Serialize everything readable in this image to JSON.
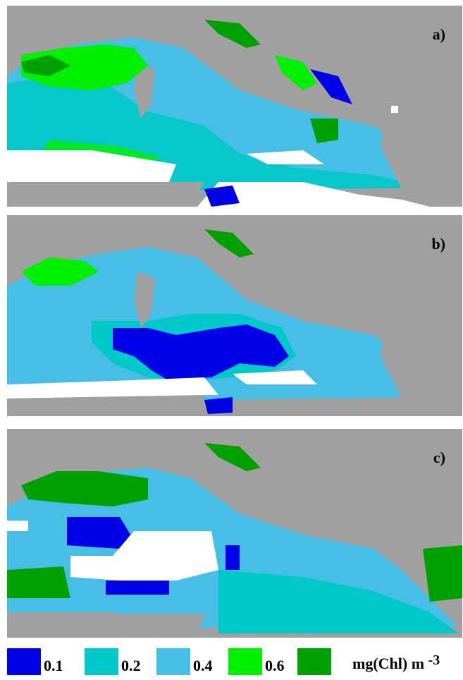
{
  "colors": {
    "land": "#a0a0a0",
    "nodata": "#ffffff",
    "c01": "#0000e6",
    "c02": "#00c8c8",
    "c04": "#46bee6",
    "c06": "#00f000",
    "c08": "#00a000"
  },
  "panels": [
    {
      "id": "a",
      "label": "a)",
      "dominant": "0.2",
      "description": "mostly 0.2 with green patches along coasts"
    },
    {
      "id": "b",
      "label": "b)",
      "dominant": "0.4",
      "description": "0.4 dominant with central 0.1 patch"
    },
    {
      "id": "c",
      "label": "c)",
      "dominant": "0.4",
      "description": "0.4 with 0.1 blocks and white gaps"
    }
  ],
  "legend": {
    "items": [
      {
        "label": "0.1",
        "color": "#0000e6"
      },
      {
        "label": "0.2",
        "color": "#00c8c8"
      },
      {
        "label": "0.4",
        "color": "#46bee6"
      },
      {
        "label": "0.6",
        "color": "#00f000"
      },
      {
        "label": "",
        "color": "#00a000"
      }
    ],
    "unit_main": "mg(Chl) m",
    "unit_exp": "-3"
  }
}
